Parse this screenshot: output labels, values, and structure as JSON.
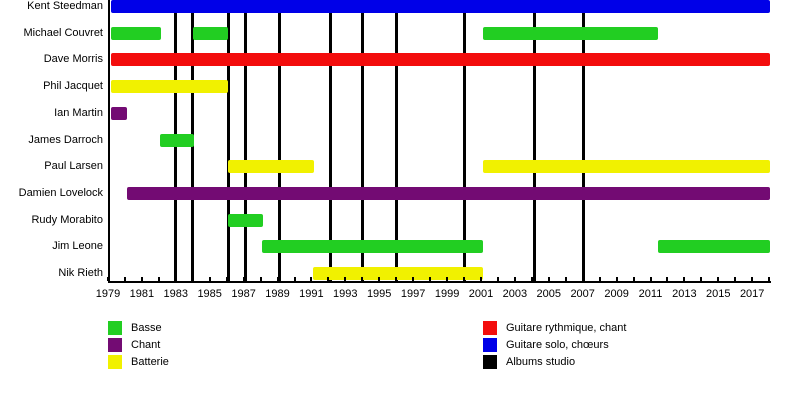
{
  "chart_data": {
    "type": "timeline",
    "title": "",
    "description": "Band line-up timeline with studio album markers",
    "x_axis": {
      "start_year": 1979,
      "end_year": 2018.05,
      "tick_every_years": 1,
      "labeled_years": [
        1979,
        1981,
        1983,
        1985,
        1987,
        1989,
        1991,
        1993,
        1995,
        1997,
        1999,
        2001,
        2003,
        2005,
        2007,
        2009,
        2011,
        2013,
        2015,
        2017
      ]
    },
    "colors": {
      "green": "#22CE22",
      "purple": "#730B73",
      "yellow": "#F1F100",
      "red": "#F30D0D",
      "blue": "#0000E8",
      "black": "#000000"
    },
    "members": [
      {
        "name": "Kent Steedman",
        "color": "blue",
        "periods": [
          [
            1979.2,
            2018.05
          ]
        ]
      },
      {
        "name": "Michael Couvret",
        "color": "green",
        "periods": [
          [
            1979.2,
            1982.15
          ],
          [
            1984.0,
            1986.1
          ],
          [
            2001.1,
            2011.45
          ]
        ]
      },
      {
        "name": "Dave Morris",
        "color": "red",
        "periods": [
          [
            1979.2,
            2018.05
          ]
        ]
      },
      {
        "name": "Phil Jacquet",
        "color": "yellow",
        "periods": [
          [
            1979.2,
            1986.1
          ]
        ]
      },
      {
        "name": "Ian Martin",
        "color": "purple",
        "periods": [
          [
            1979.2,
            1980.15
          ]
        ]
      },
      {
        "name": "James Darroch",
        "color": "green",
        "periods": [
          [
            1982.05,
            1984.05
          ]
        ]
      },
      {
        "name": "Paul Larsen",
        "color": "yellow",
        "periods": [
          [
            1986.1,
            1991.15
          ],
          [
            2001.1,
            2018.05
          ]
        ]
      },
      {
        "name": "Damien Lovelock",
        "color": "purple",
        "periods": [
          [
            1980.1,
            2018.05
          ]
        ]
      },
      {
        "name": "Rudy Morabito",
        "color": "green",
        "periods": [
          [
            1986.1,
            1988.15
          ]
        ]
      },
      {
        "name": "Jim Leone",
        "color": "green",
        "periods": [
          [
            1988.1,
            2001.1
          ],
          [
            2011.45,
            2018.05
          ]
        ]
      },
      {
        "name": "Nik Rieth",
        "color": "yellow",
        "periods": [
          [
            1991.1,
            2001.1
          ]
        ]
      }
    ],
    "album_lines_years": [
      1983,
      1984,
      1986.1,
      1987.1,
      1989.1,
      1992.1,
      1994,
      1996,
      2000.05,
      2004.15,
      2007.05
    ]
  },
  "legend": {
    "items_left": [
      {
        "label": "Basse",
        "color": "green"
      },
      {
        "label": "Chant",
        "color": "purple"
      },
      {
        "label": "Batterie",
        "color": "yellow"
      }
    ],
    "items_right": [
      {
        "label": "Guitare rythmique, chant",
        "color": "red"
      },
      {
        "label": "Guitare solo, chœurs",
        "color": "blue"
      },
      {
        "label": "Albums studio",
        "color": "black"
      }
    ]
  }
}
